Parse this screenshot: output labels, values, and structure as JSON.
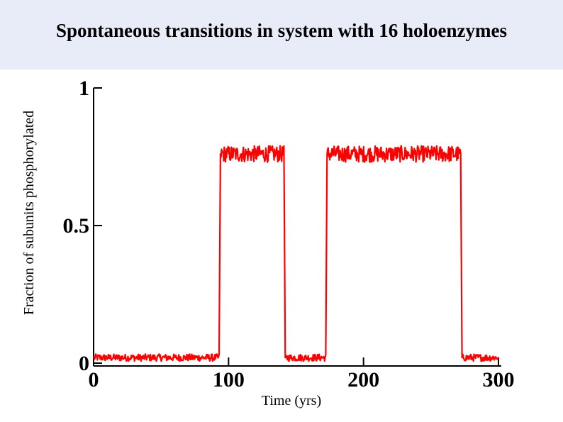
{
  "slide": {
    "title": "Spontaneous transitions in system with 16 holoenzymes"
  },
  "chart_data": {
    "type": "line",
    "title": "Spontaneous transitions in system with 16 holoenzymes",
    "xlabel": "Time (yrs)",
    "ylabel": "Fraction of subunits phosphorylated",
    "xlim": [
      0,
      300
    ],
    "ylim": [
      0,
      1
    ],
    "x_ticks": [
      0,
      100,
      200,
      300
    ],
    "x_tick_labels": [
      "0",
      "100",
      "200",
      "300"
    ],
    "y_ticks": [
      0,
      0.5,
      1
    ],
    "y_tick_labels": [
      "0",
      "0.5",
      "1"
    ],
    "grid": false,
    "legend": "none",
    "series": [
      {
        "color": "#ff0000",
        "x": [
          0,
          93,
          94,
          141,
          142,
          172,
          173,
          272,
          273,
          300
        ],
        "y": [
          0.02,
          0.02,
          0.76,
          0.76,
          0.02,
          0.02,
          0.76,
          0.76,
          0.02,
          0.02
        ]
      }
    ]
  }
}
